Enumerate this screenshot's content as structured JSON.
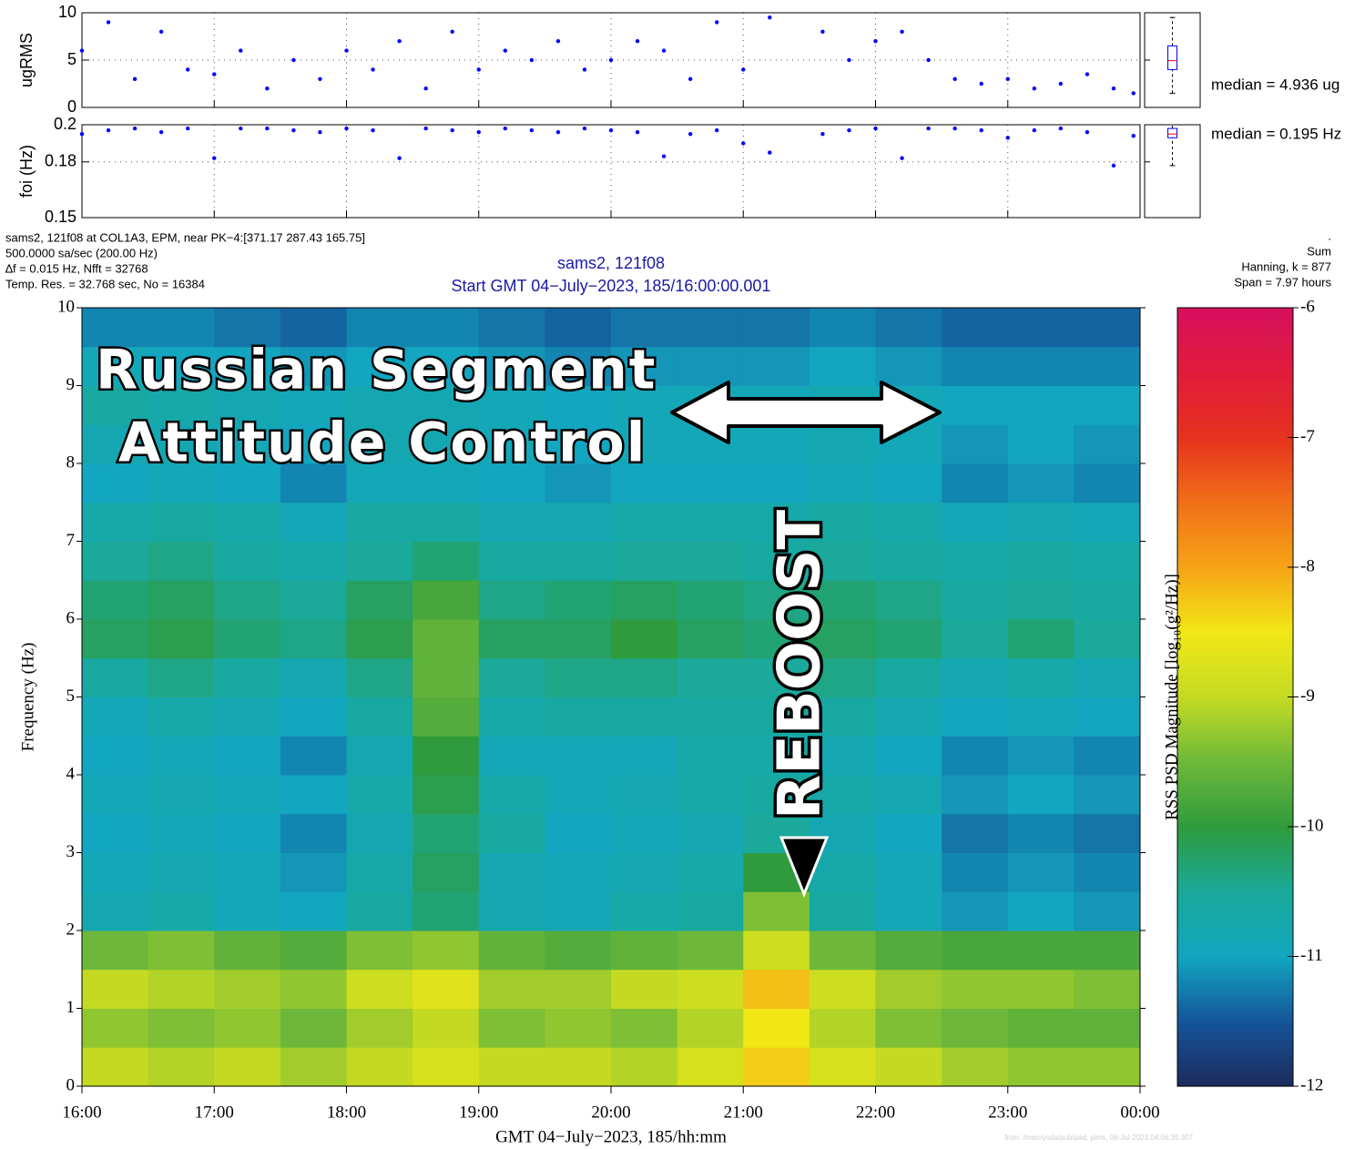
{
  "chart_data": [
    {
      "type": "scatter",
      "ylabel": "ugRMS",
      "color": "#0000ff",
      "xlim": [
        16,
        24
      ],
      "xticks": [
        16,
        17,
        18,
        19,
        20,
        21,
        22,
        23,
        24
      ],
      "ylim": [
        0,
        10
      ],
      "yticks": [
        0,
        5,
        10
      ],
      "grid": true,
      "x": [
        16.0,
        16.2,
        16.4,
        16.6,
        16.8,
        17.0,
        17.2,
        17.4,
        17.6,
        17.8,
        18.0,
        18.2,
        18.4,
        18.6,
        18.8,
        19.0,
        19.2,
        19.4,
        19.6,
        19.8,
        20.0,
        20.2,
        20.4,
        20.6,
        20.8,
        21.0,
        21.2,
        21.6,
        21.8,
        22.0,
        22.2,
        22.4,
        22.6,
        22.8,
        23.0,
        23.2,
        23.4,
        23.6,
        23.8,
        23.95
      ],
      "values": [
        6,
        9,
        3,
        8,
        4,
        3.5,
        6,
        2,
        5,
        3,
        6,
        4,
        7,
        2,
        8,
        4,
        6,
        5,
        7,
        4,
        5,
        7,
        6,
        3,
        9,
        4,
        9.5,
        8,
        5,
        7,
        8,
        5,
        3,
        2.5,
        3,
        2,
        2.5,
        3.5,
        2,
        1.5
      ],
      "box": {
        "whisker_low": 1.5,
        "q1": 4,
        "median": 4.936,
        "q3": 6.5,
        "whisker_high": 9.5
      },
      "median_label": "median = 4.936 ug"
    },
    {
      "type": "scatter",
      "ylabel": "foi (Hz)",
      "color": "#0000ff",
      "xlim": [
        16,
        24
      ],
      "xticks": [
        16,
        17,
        18,
        19,
        20,
        21,
        22,
        23,
        24
      ],
      "ylim": [
        0.15,
        0.2
      ],
      "yticks": [
        0.15,
        0.18,
        0.2
      ],
      "grid": true,
      "x": [
        16.0,
        16.2,
        16.4,
        16.6,
        16.8,
        17.0,
        17.2,
        17.4,
        17.6,
        17.8,
        18.0,
        18.2,
        18.4,
        18.6,
        18.8,
        19.0,
        19.2,
        19.4,
        19.6,
        19.8,
        20.0,
        20.2,
        20.4,
        20.6,
        20.8,
        21.0,
        21.2,
        21.6,
        21.8,
        22.0,
        22.2,
        22.4,
        22.6,
        22.8,
        23.0,
        23.2,
        23.4,
        23.6,
        23.8,
        23.95
      ],
      "values": [
        0.195,
        0.197,
        0.198,
        0.196,
        0.198,
        0.182,
        0.198,
        0.198,
        0.197,
        0.196,
        0.198,
        0.197,
        0.182,
        0.198,
        0.197,
        0.196,
        0.198,
        0.197,
        0.196,
        0.198,
        0.197,
        0.196,
        0.183,
        0.195,
        0.197,
        0.19,
        0.185,
        0.195,
        0.197,
        0.198,
        0.182,
        0.198,
        0.198,
        0.197,
        0.193,
        0.197,
        0.198,
        0.196,
        0.178,
        0.194
      ],
      "box": {
        "whisker_low": 0.178,
        "q1": 0.193,
        "median": 0.195,
        "q3": 0.198,
        "whisker_high": 0.2
      },
      "median_label": "median = 0.195 Hz"
    },
    {
      "type": "heatmap",
      "title": [
        "sams2, 121f08",
        "Start GMT 04−July−2023, 185/16:00:00.001"
      ],
      "info_left": [
        "sams2, 121f08 at COL1A3, EPM, near PK−4:[371.17 287.43 165.75]",
        "500.0000 sa/sec (200.00 Hz)",
        "∆f = 0.015 Hz,  Nfft = 32768",
        "Temp. Res. = 32.768 sec, No = 16384"
      ],
      "info_right": [
        ".",
        "Sum",
        "Hanning, k = 877",
        "Span = 7.97 hours"
      ],
      "xlabel": "GMT 04−July−2023, 185/hh:mm",
      "ylabel": "Frequency (Hz)",
      "colorbar_label": "RSS PSD Magnitude [log₁₀(g²/Hz)]",
      "xlim": [
        16,
        24
      ],
      "xticks": [
        {
          "value": 16,
          "label": "16:00"
        },
        {
          "value": 17,
          "label": "17:00"
        },
        {
          "value": 18,
          "label": "18:00"
        },
        {
          "value": 19,
          "label": "19:00"
        },
        {
          "value": 20,
          "label": "20:00"
        },
        {
          "value": 21,
          "label": "21:00"
        },
        {
          "value": 22,
          "label": "22:00"
        },
        {
          "value": 23,
          "label": "23:00"
        },
        {
          "value": 24,
          "label": "00:00"
        }
      ],
      "ylim": [
        0,
        10
      ],
      "yticks": [
        0,
        1,
        2,
        3,
        4,
        5,
        6,
        7,
        8,
        9,
        10
      ],
      "zlim": [
        -12,
        -6
      ],
      "zticks": [
        -12,
        -11,
        -10,
        -9,
        -8,
        -7,
        -6
      ],
      "colormap": [
        "#1c2b5c",
        "#15549a",
        "#12a6c0",
        "#1aa99a",
        "#2f9b3c",
        "#6db83a",
        "#c4da22",
        "#f2e816",
        "#f6a416",
        "#f07018",
        "#e6321e",
        "#e01c3a",
        "#d6105e"
      ],
      "x": [
        16.25,
        16.75,
        17.25,
        17.75,
        18.25,
        18.75,
        19.25,
        19.75,
        20.25,
        20.75,
        21.25,
        21.75,
        22.25,
        22.75,
        23.25,
        23.75
      ],
      "y": [
        0.25,
        0.75,
        1.25,
        1.75,
        2.25,
        2.75,
        3.25,
        3.75,
        4.25,
        4.75,
        5.25,
        5.75,
        6.25,
        6.75,
        7.25,
        7.75,
        8.25,
        8.75,
        9.25,
        9.75
      ],
      "values": [
        [
          -9.0,
          -9.1,
          -9.0,
          -9.2,
          -9.0,
          -8.8,
          -9.0,
          -9.0,
          -9.1,
          -8.8,
          -8.3,
          -8.8,
          -9.0,
          -9.2,
          -9.3,
          -9.3
        ],
        [
          -9.3,
          -9.4,
          -9.3,
          -9.5,
          -9.2,
          -9.0,
          -9.4,
          -9.3,
          -9.4,
          -9.1,
          -8.5,
          -9.1,
          -9.4,
          -9.5,
          -9.6,
          -9.6
        ],
        [
          -9.0,
          -9.1,
          -9.2,
          -9.3,
          -8.9,
          -8.7,
          -9.2,
          -9.2,
          -9.0,
          -8.9,
          -8.2,
          -8.9,
          -9.2,
          -9.3,
          -9.3,
          -9.4
        ],
        [
          -9.5,
          -9.4,
          -9.6,
          -9.7,
          -9.4,
          -9.3,
          -9.6,
          -9.7,
          -9.6,
          -9.5,
          -8.9,
          -9.5,
          -9.7,
          -9.8,
          -9.8,
          -9.8
        ],
        [
          -10.8,
          -10.7,
          -10.9,
          -11.0,
          -10.6,
          -10.3,
          -10.8,
          -10.9,
          -10.7,
          -10.6,
          -9.4,
          -10.6,
          -10.9,
          -11.1,
          -11.0,
          -11.1
        ],
        [
          -10.9,
          -10.8,
          -10.9,
          -11.1,
          -10.7,
          -10.2,
          -10.8,
          -10.9,
          -10.8,
          -10.7,
          -10.0,
          -10.7,
          -10.9,
          -11.2,
          -11.1,
          -11.2
        ],
        [
          -11.0,
          -10.9,
          -11.0,
          -11.2,
          -10.8,
          -10.3,
          -10.6,
          -11.0,
          -10.9,
          -10.8,
          -10.5,
          -10.8,
          -11.0,
          -11.3,
          -11.2,
          -11.3
        ],
        [
          -10.9,
          -10.8,
          -10.9,
          -11.0,
          -10.7,
          -10.1,
          -10.7,
          -10.9,
          -10.8,
          -10.7,
          -10.6,
          -10.7,
          -10.8,
          -11.1,
          -11.0,
          -11.1
        ],
        [
          -11.0,
          -10.9,
          -11.0,
          -11.2,
          -10.8,
          -10.0,
          -10.9,
          -10.9,
          -10.9,
          -10.7,
          -10.7,
          -10.8,
          -11.0,
          -11.2,
          -11.1,
          -11.2
        ],
        [
          -10.9,
          -10.7,
          -10.8,
          -11.0,
          -10.6,
          -9.7,
          -10.7,
          -10.6,
          -10.6,
          -10.6,
          -10.6,
          -10.6,
          -10.8,
          -11.0,
          -10.9,
          -11.0
        ],
        [
          -10.6,
          -10.4,
          -10.6,
          -10.8,
          -10.4,
          -9.6,
          -10.5,
          -10.4,
          -10.4,
          -10.5,
          -10.5,
          -10.4,
          -10.6,
          -10.8,
          -10.7,
          -10.8
        ],
        [
          -10.2,
          -10.1,
          -10.3,
          -10.4,
          -10.1,
          -9.6,
          -10.2,
          -10.2,
          -10.0,
          -10.2,
          -10.3,
          -10.2,
          -10.3,
          -10.5,
          -10.3,
          -10.5
        ],
        [
          -10.3,
          -10.2,
          -10.4,
          -10.5,
          -10.2,
          -9.8,
          -10.4,
          -10.3,
          -10.2,
          -10.3,
          -10.4,
          -10.3,
          -10.4,
          -10.6,
          -10.5,
          -10.6
        ],
        [
          -10.5,
          -10.4,
          -10.6,
          -10.7,
          -10.5,
          -10.3,
          -10.6,
          -10.6,
          -10.5,
          -10.5,
          -10.6,
          -10.5,
          -10.6,
          -10.7,
          -10.6,
          -10.7
        ],
        [
          -10.7,
          -10.6,
          -10.7,
          -10.9,
          -10.6,
          -10.6,
          -10.8,
          -10.8,
          -10.7,
          -10.7,
          -10.7,
          -10.6,
          -10.7,
          -10.9,
          -10.8,
          -10.9
        ],
        [
          -11.0,
          -10.9,
          -11.0,
          -11.2,
          -10.9,
          -10.9,
          -11.0,
          -11.1,
          -11.0,
          -11.0,
          -11.0,
          -10.9,
          -11.0,
          -11.2,
          -11.1,
          -11.2
        ],
        [
          -10.8,
          -10.8,
          -10.9,
          -11.0,
          -10.8,
          -10.8,
          -10.9,
          -11.0,
          -10.9,
          -10.9,
          -10.9,
          -10.8,
          -10.9,
          -11.1,
          -11.0,
          -11.1
        ],
        [
          -10.6,
          -10.7,
          -10.8,
          -10.9,
          -10.8,
          -10.8,
          -10.9,
          -11.0,
          -10.9,
          -10.9,
          -10.9,
          -10.8,
          -10.9,
          -11.0,
          -11.0,
          -11.0
        ],
        [
          -10.9,
          -11.0,
          -11.0,
          -11.1,
          -11.0,
          -11.0,
          -11.1,
          -11.2,
          -11.1,
          -11.1,
          -11.1,
          -11.0,
          -11.1,
          -11.2,
          -11.2,
          -11.2
        ],
        [
          -11.2,
          -11.2,
          -11.3,
          -11.4,
          -11.2,
          -11.2,
          -11.3,
          -11.4,
          -11.3,
          -11.3,
          -11.3,
          -11.2,
          -11.3,
          -11.4,
          -11.4,
          -11.4
        ]
      ],
      "annotations": [
        "Russian Segment",
        "Attitude Control",
        "REBOOST"
      ]
    }
  ],
  "footer": "from: /misc/yoda/pub/pad, pims, 06-Jul-2023,04:06:35.307"
}
